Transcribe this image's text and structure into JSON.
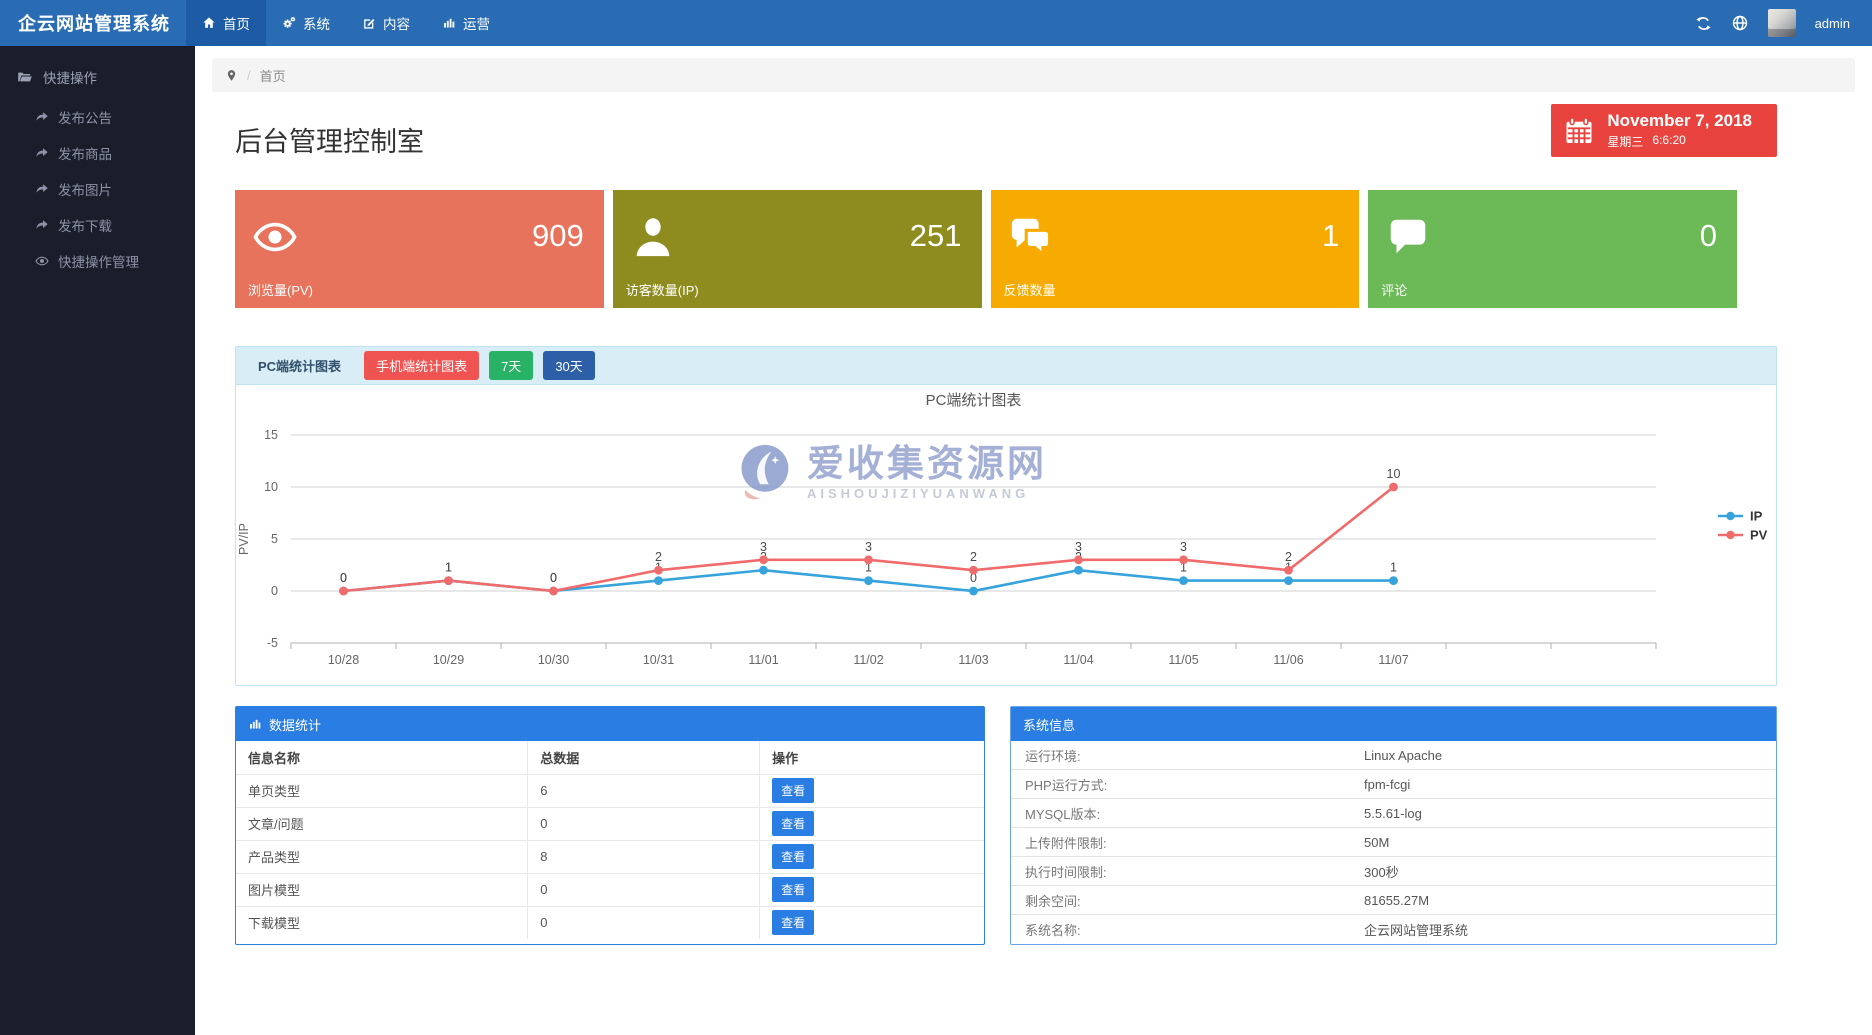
{
  "navbar": {
    "brand": "企云网站管理系统",
    "items": [
      {
        "label": "首页",
        "icon": "home-icon",
        "active": true
      },
      {
        "label": "系统",
        "icon": "gears-icon",
        "active": false
      },
      {
        "label": "内容",
        "icon": "edit-icon",
        "active": false
      },
      {
        "label": "运营",
        "icon": "bar-chart-icon",
        "active": false
      }
    ],
    "username": "admin"
  },
  "sidebar": {
    "section": "快捷操作",
    "items": [
      {
        "label": "发布公告",
        "icon": "share-icon"
      },
      {
        "label": "发布商品",
        "icon": "share-icon"
      },
      {
        "label": "发布图片",
        "icon": "share-icon"
      },
      {
        "label": "发布下载",
        "icon": "share-icon"
      },
      {
        "label": "快捷操作管理",
        "icon": "eye-icon"
      }
    ]
  },
  "breadcrumb": {
    "separator": "/",
    "home": "首页"
  },
  "page": {
    "title": "后台管理控制室"
  },
  "date_widget": {
    "date": "November 7, 2018",
    "weekday": "星期三",
    "time": "6:6:20"
  },
  "stats": [
    {
      "value": "909",
      "label": "浏览量(PV)",
      "color": "#e8735c",
      "icon": "eye-icon"
    },
    {
      "value": "251",
      "label": "访客数量(IP)",
      "color": "#8e8c1e",
      "icon": "user-icon"
    },
    {
      "value": "1",
      "label": "反馈数量",
      "color": "#f7ab00",
      "icon": "comments-icon"
    },
    {
      "value": "0",
      "label": "评论",
      "color": "#6cba57",
      "icon": "comment-icon"
    }
  ],
  "chart_panel": {
    "tab_active": "PC端统计图表",
    "btn_mobile": "手机端统计图表",
    "btn_7days": "7天",
    "btn_30days": "30天",
    "watermark_cn": "爱收集资源网",
    "watermark_en": "AISHOUJIZIYUANWANG"
  },
  "chart_data": {
    "type": "line",
    "title": "PC端统计图表",
    "xlabel": "",
    "ylabel": "PV/IP",
    "categories": [
      "10/28",
      "10/29",
      "10/30",
      "10/31",
      "11/01",
      "11/02",
      "11/03",
      "11/04",
      "11/05",
      "11/06",
      "11/07"
    ],
    "series": [
      {
        "name": "IP",
        "color": "#36a3dc",
        "values": [
          0,
          1,
          0,
          1,
          2,
          1,
          0,
          2,
          1,
          1,
          1
        ]
      },
      {
        "name": "PV",
        "color": "#f06b6b",
        "values": [
          0,
          1,
          0,
          2,
          3,
          3,
          2,
          3,
          3,
          2,
          10
        ]
      }
    ],
    "ylim": [
      -5,
      15
    ],
    "yticks": [
      -5,
      0,
      5,
      10,
      15
    ],
    "grid": true,
    "legend_position": "right"
  },
  "data_table": {
    "header": "数据统计",
    "columns": [
      "信息名称",
      "总数据",
      "操作"
    ],
    "action_label": "查看",
    "rows": [
      [
        "单页类型",
        "6"
      ],
      [
        "文章/问题",
        "0"
      ],
      [
        "产品类型",
        "8"
      ],
      [
        "图片模型",
        "0"
      ],
      [
        "下载模型",
        "0"
      ]
    ]
  },
  "system_info": {
    "header": "系统信息",
    "rows": [
      {
        "label": "运行环境:",
        "value": "Linux Apache"
      },
      {
        "label": "PHP运行方式:",
        "value": "fpm-fcgi"
      },
      {
        "label": "MYSQL版本:",
        "value": "5.5.61-log"
      },
      {
        "label": "上传附件限制:",
        "value": "50M"
      },
      {
        "label": "执行时间限制:",
        "value": "300秒"
      },
      {
        "label": "剩余空间:",
        "value": "81655.27M"
      },
      {
        "label": "系统名称:",
        "value": "企云网站管理系统"
      }
    ]
  }
}
